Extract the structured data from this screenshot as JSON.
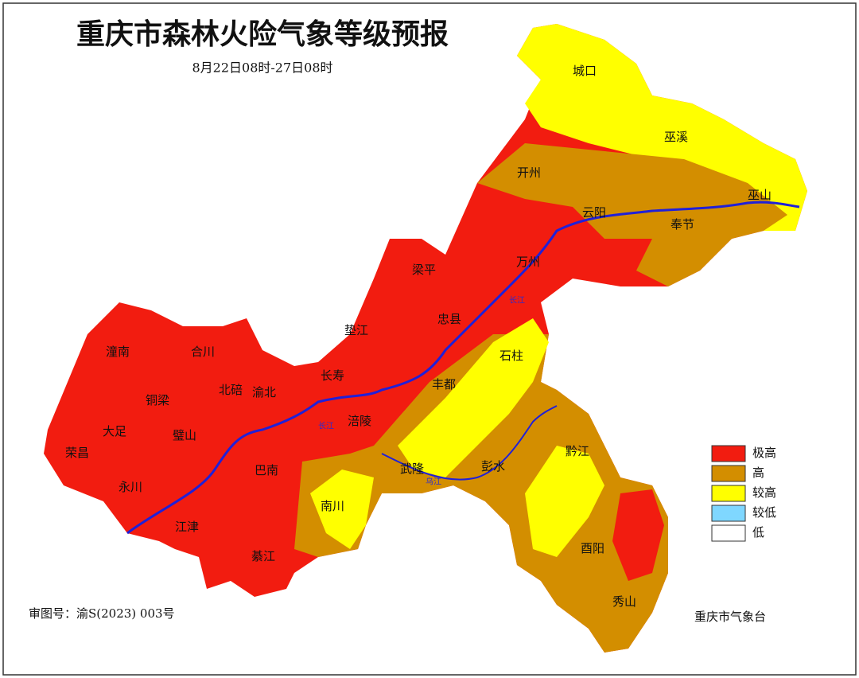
{
  "header": {
    "title": "重庆市森林火险气象等级预报",
    "subtitle": "8月22日08时-27日08时"
  },
  "districts": [
    "城口",
    "巫溪",
    "巫山",
    "开州",
    "云阳",
    "奉节",
    "梁平",
    "万州",
    "忠县",
    "垫江",
    "石柱",
    "潼南",
    "合川",
    "长寿",
    "丰都",
    "北碚",
    "渝北",
    "铜梁",
    "大足",
    "璧山",
    "涪陵",
    "荣昌",
    "永川",
    "巴南",
    "武隆",
    "彭水",
    "黔江",
    "南川",
    "江津",
    "綦江",
    "酉阳",
    "秀山"
  ],
  "rivers": [
    "长江",
    "长江",
    "乌江"
  ],
  "legend": [
    {
      "name": "极高",
      "color": "#f21c10"
    },
    {
      "name": "高",
      "color": "#d38e00"
    },
    {
      "name": "较高",
      "color": "#ffff00"
    },
    {
      "name": "较低",
      "color": "#7fd7ff"
    },
    {
      "name": "低",
      "color": "#ffffff"
    }
  ],
  "footer": {
    "approval": "审图号：渝S(2023) 003号",
    "issuer": "重庆市气象台"
  }
}
